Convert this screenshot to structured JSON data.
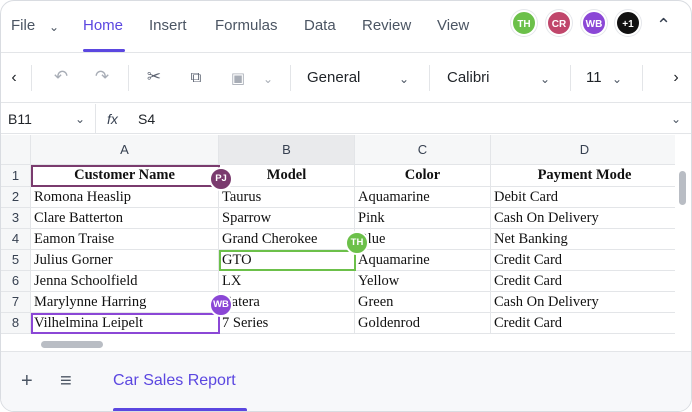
{
  "ribbon": {
    "tabs": [
      "File",
      "Home",
      "Insert",
      "Formulas",
      "Data",
      "Review",
      "View"
    ],
    "active_tab": "Home",
    "collaborators": [
      {
        "initials": "TH",
        "color": "#6cc04a"
      },
      {
        "initials": "CR",
        "color": "#c0466b"
      },
      {
        "initials": "WB",
        "color": "#8b47d6"
      },
      {
        "initials": "+1",
        "color": "#111111"
      }
    ],
    "collapse_icon": "chevron-up-icon"
  },
  "toolbar": {
    "number_format": "General",
    "font_name": "Calibri",
    "font_size": "11",
    "icons": [
      "undo-icon",
      "redo-icon",
      "cut-icon",
      "copy-icon",
      "paste-icon"
    ]
  },
  "formula_bar": {
    "cell_ref": "B11",
    "fx_label": "fx",
    "value": "S4"
  },
  "grid": {
    "columns": [
      "A",
      "B",
      "C",
      "D"
    ],
    "row_numbers": [
      "1",
      "2",
      "3",
      "4",
      "5",
      "6",
      "7",
      "8"
    ],
    "headers": [
      "Customer Name",
      "Model",
      "Color",
      "Payment Mode"
    ],
    "rows": [
      [
        "Romona Heaslip",
        "Taurus",
        "Aquamarine",
        "Debit Card"
      ],
      [
        "Clare Batterton",
        "Sparrow",
        "Pink",
        "Cash On Delivery"
      ],
      [
        "Eamon Traise",
        "Grand Cherokee",
        "Blue",
        "Net Banking"
      ],
      [
        "Julius Gorner",
        "GTO",
        "Aquamarine",
        "Credit Card"
      ],
      [
        "Jenna Schoolfield",
        "LX",
        "Yellow",
        "Credit Card"
      ],
      [
        "Marylynne Harring",
        "Catera",
        "Green",
        "Cash On Delivery"
      ],
      [
        "Vilhelmina Leipelt",
        "7 Series",
        "Goldenrod",
        "Credit Card"
      ]
    ],
    "presence": [
      {
        "initials": "PJ",
        "color": "#7a3b6e"
      },
      {
        "initials": "TH",
        "color": "#6cc04a"
      },
      {
        "initials": "WB",
        "color": "#8b47d6"
      }
    ]
  },
  "sheets": {
    "active": "Car Sales Report"
  }
}
